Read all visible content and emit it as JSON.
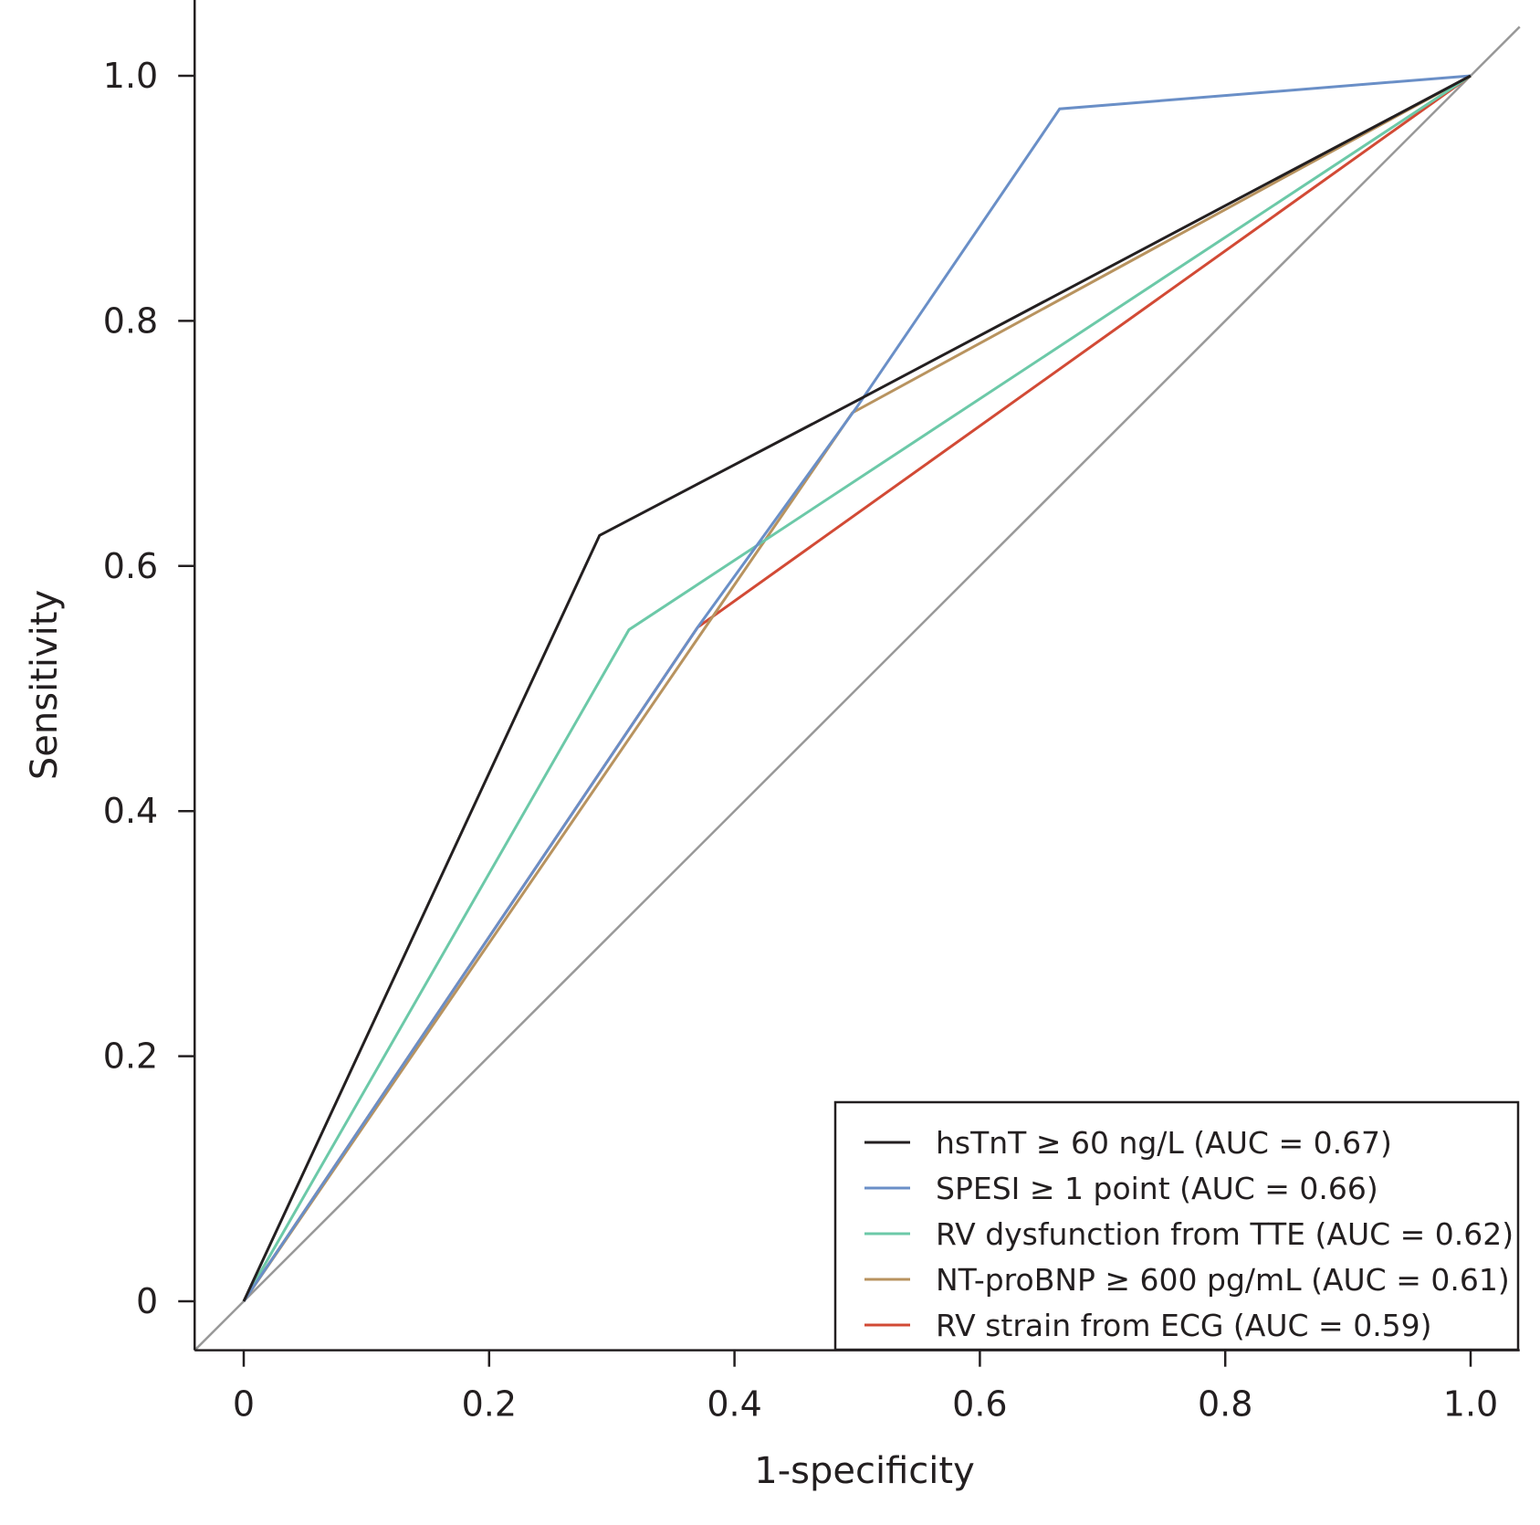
{
  "chart_data": {
    "type": "line",
    "title": "",
    "xlabel": "1-specificity",
    "ylabel": "Sensitivity",
    "xlim": [
      -0.04,
      1.04
    ],
    "ylim": [
      -0.04,
      1.04
    ],
    "xticks": [
      0,
      0.2,
      0.4,
      0.6,
      0.8,
      1.0
    ],
    "xtick_labels": [
      "0",
      "0.2",
      "0.4",
      "0.6",
      "0.8",
      "1.0"
    ],
    "yticks": [
      0,
      0.2,
      0.4,
      0.6,
      0.8,
      1.0
    ],
    "ytick_labels": [
      "0",
      "0.2",
      "0.4",
      "0.6",
      "0.8",
      "1.0"
    ],
    "grid": false,
    "legend_position": "bottom-right",
    "reference_line": {
      "name": "chance",
      "x": [
        -0.04,
        1.04
      ],
      "y": [
        -0.04,
        1.04
      ],
      "color": "#999999"
    },
    "series": [
      {
        "name": "hsTnT ≥ 60 ng/L (AUC = 0.67)",
        "color": "#231f20",
        "x": [
          0,
          0.29,
          0.5,
          1.0
        ],
        "y": [
          0,
          0.625,
          0.735,
          1.0
        ]
      },
      {
        "name": "SPESI ≥ 1 point (AUC = 0.66)",
        "color": "#6a8fc7",
        "x": [
          0,
          0.37,
          0.5,
          0.665,
          1.0
        ],
        "y": [
          0,
          0.55,
          0.73,
          0.973,
          1.0
        ]
      },
      {
        "name": "RV dysfunction from TTE (AUC = 0.62)",
        "color": "#6cc9a8",
        "x": [
          0,
          0.314,
          1.0
        ],
        "y": [
          0,
          0.548,
          1.0
        ]
      },
      {
        "name": "NT-proBNP ≥ 600 pg/mL (AUC = 0.61)",
        "color": "#b8935f",
        "x": [
          0,
          0.496,
          1.0
        ],
        "y": [
          0,
          0.725,
          1.0
        ]
      },
      {
        "name": "RV strain from ECG (AUC = 0.59)",
        "color": "#d24a35",
        "x": [
          0,
          0.37,
          1.0
        ],
        "y": [
          0,
          0.55,
          1.0
        ]
      }
    ]
  }
}
